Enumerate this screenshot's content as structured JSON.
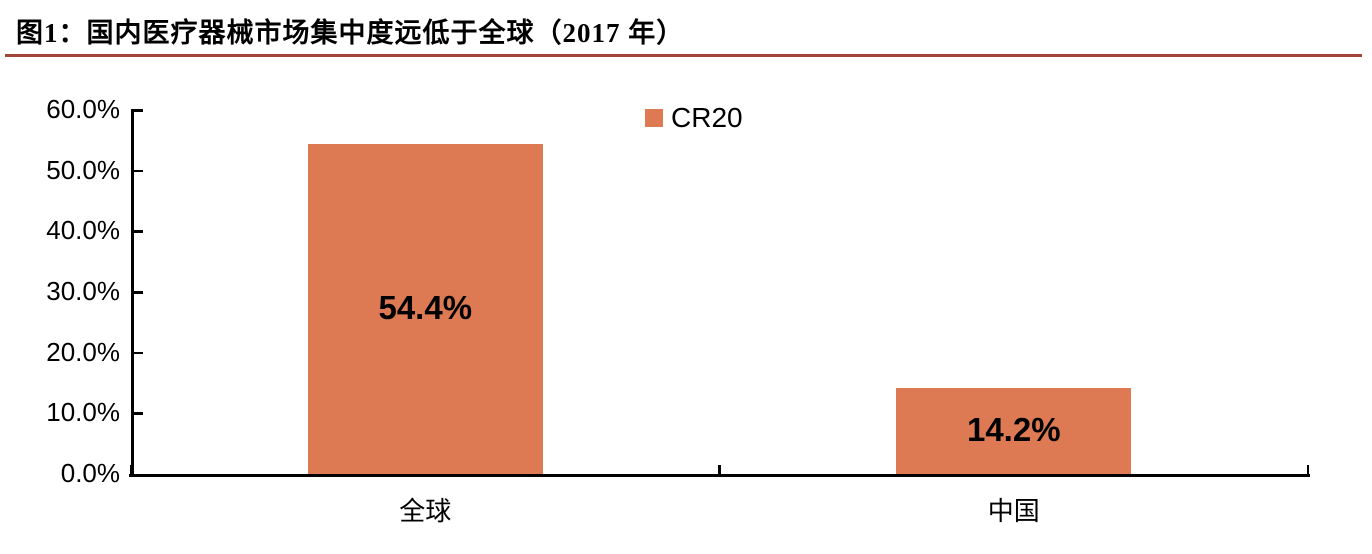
{
  "figure": {
    "title": "图1：国内医疗器械市场集中度远低于全球（2017 年）"
  },
  "legend": {
    "label": "CR20"
  },
  "colors": {
    "bar": "#DD7A54",
    "title_underline": "#A04737",
    "axis": "#000000",
    "text": "#000000"
  },
  "chart_data": {
    "type": "bar",
    "title": "图1：国内医疗器械市场集中度远低于全球（2017 年）",
    "categories": [
      "全球",
      "中国"
    ],
    "series": [
      {
        "name": "CR20",
        "values": [
          54.4,
          14.2
        ]
      }
    ],
    "value_labels": [
      "54.4%",
      "14.2%"
    ],
    "xlabel": "",
    "ylabel": "",
    "ylim": [
      0,
      60
    ],
    "ytick_step": 10,
    "ytick_labels": [
      "0.0%",
      "10.0%",
      "20.0%",
      "30.0%",
      "40.0%",
      "50.0%",
      "60.0%"
    ],
    "grid": false,
    "legend_position": "top-center",
    "bar_color": "#DD7A54"
  }
}
